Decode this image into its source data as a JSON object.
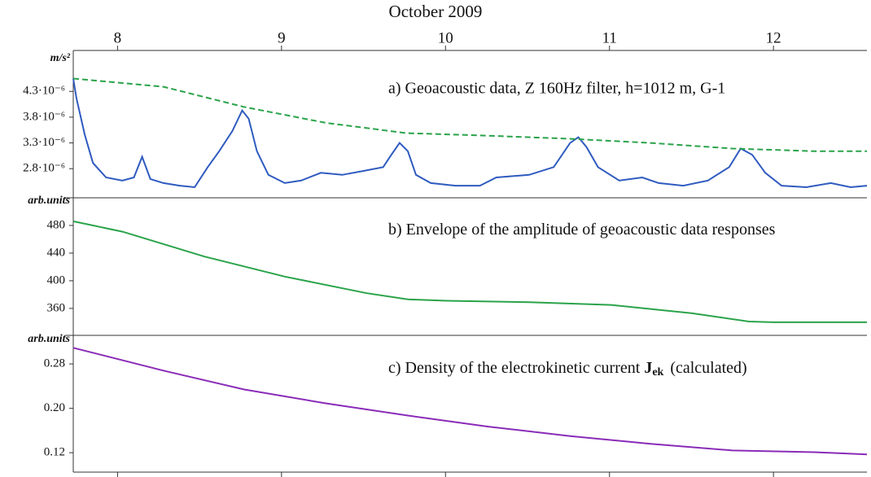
{
  "chart_data": [
    {
      "type": "line",
      "title": "October 2009",
      "y_unit": "m/s²",
      "annotation": "a) Geoacoustic data, Z 160Hz filter, h=1012 m, G-1",
      "xlim": [
        7.73,
        12.57
      ],
      "xticks": [
        8,
        9,
        10,
        11,
        12
      ],
      "ylim": [
        2.25e-06,
        5e-06
      ],
      "yticks": [
        {
          "value": 2.8e-06,
          "label": "2.8·10⁻⁶"
        },
        {
          "value": 3.3e-06,
          "label": "3.3·10⁻⁶"
        },
        {
          "value": 3.8e-06,
          "label": "3.8·10⁻⁶"
        },
        {
          "value": 4.3e-06,
          "label": "4.3·10⁻⁶"
        }
      ],
      "series": [
        {
          "color": "#2f5bbf",
          "style": "solid",
          "x": [
            7.73,
            7.75,
            7.8,
            7.85,
            7.93,
            8.03,
            8.1,
            8.15,
            8.2,
            8.28,
            8.38,
            8.47,
            8.55,
            8.62,
            8.7,
            8.76,
            8.8,
            8.85,
            8.92,
            9.02,
            9.12,
            9.24,
            9.37,
            9.49,
            9.62,
            9.67,
            9.72,
            9.77,
            9.82,
            9.91,
            10.06,
            10.21,
            10.31,
            10.51,
            10.66,
            10.76,
            10.81,
            10.86,
            10.93,
            11.06,
            11.2,
            11.3,
            11.45,
            11.6,
            11.73,
            11.8,
            11.87,
            11.95,
            12.05,
            12.2,
            12.35,
            12.47,
            12.57
          ],
          "values": [
            4.55e-06,
            4.16e-06,
            3.46e-06,
            2.91e-06,
            2.63e-06,
            2.57e-06,
            2.63e-06,
            3.03e-06,
            2.6e-06,
            2.52e-06,
            2.47e-06,
            2.44e-06,
            2.83e-06,
            3.14e-06,
            3.53e-06,
            3.93e-06,
            3.77e-06,
            3.14e-06,
            2.68e-06,
            2.52e-06,
            2.57e-06,
            2.72e-06,
            2.68e-06,
            2.75e-06,
            2.83e-06,
            3.07e-06,
            3.3e-06,
            3.14e-06,
            2.68e-06,
            2.52e-06,
            2.47e-06,
            2.47e-06,
            2.63e-06,
            2.68e-06,
            2.83e-06,
            3.3e-06,
            3.41e-06,
            3.22e-06,
            2.83e-06,
            2.57e-06,
            2.63e-06,
            2.52e-06,
            2.47e-06,
            2.57e-06,
            2.83e-06,
            3.19e-06,
            3.07e-06,
            2.72e-06,
            2.47e-06,
            2.44e-06,
            2.52e-06,
            2.44e-06,
            2.47e-06
          ]
        },
        {
          "color": "#2aa34a",
          "style": "dashed",
          "x": [
            7.73,
            8.28,
            8.77,
            9.27,
            9.76,
            10.26,
            10.76,
            11.25,
            11.75,
            12.25,
            12.57
          ],
          "values": [
            4.55e-06,
            4.39e-06,
            4e-06,
            3.69e-06,
            3.49e-06,
            3.44e-06,
            3.38e-06,
            3.3e-06,
            3.19e-06,
            3.14e-06,
            3.14e-06
          ]
        }
      ]
    },
    {
      "type": "line",
      "y_unit": "arb.units",
      "annotation": "b) Envelope of the amplitude of geoacoustic data responses",
      "xlim": [
        7.73,
        12.57
      ],
      "ylim": [
        321,
        520
      ],
      "yticks": [
        360,
        400,
        440,
        480
      ],
      "series": [
        {
          "color": "#2aa34a",
          "style": "solid",
          "x": [
            7.73,
            8.03,
            8.53,
            9.02,
            9.52,
            9.77,
            10.01,
            10.51,
            11.01,
            11.5,
            11.85,
            12.0,
            12.57
          ],
          "values": [
            486,
            471,
            435,
            406,
            382,
            373,
            371,
            369,
            365,
            353,
            341,
            340,
            340
          ]
        }
      ]
    },
    {
      "type": "line",
      "y_unit": "arb.units",
      "annotation_parts": [
        "c) Density of the electrokinetic current",
        "J",
        "ek",
        "(calculated)"
      ],
      "xlim": [
        7.73,
        12.57
      ],
      "ylim": [
        0.085,
        0.33
      ],
      "yticks": [
        0.12,
        {
          "value": 0.2,
          "label": "0.20"
        },
        0.28
      ],
      "series": [
        {
          "color": "#8a2bb8",
          "style": "solid",
          "x": [
            7.73,
            8.28,
            8.77,
            9.27,
            9.77,
            10.26,
            10.76,
            11.25,
            11.75,
            12.25,
            12.57
          ],
          "values": [
            0.309,
            0.268,
            0.234,
            0.209,
            0.187,
            0.167,
            0.15,
            0.136,
            0.124,
            0.121,
            0.117
          ]
        }
      ]
    }
  ]
}
